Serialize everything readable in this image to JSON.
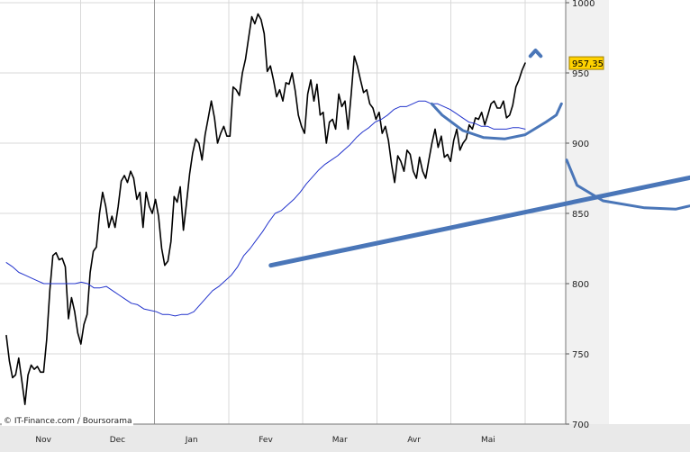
{
  "chart_data": {
    "type": "line",
    "title": "",
    "xlabel": "",
    "ylabel": "",
    "ylim": [
      700,
      1000
    ],
    "y_ticks": [
      700,
      750,
      800,
      850,
      900,
      950,
      1000
    ],
    "x_tick_labels": [
      "Nov",
      "Dec",
      "Jan",
      "Fev",
      "Mar",
      "Avr",
      "Mai"
    ],
    "grid": true,
    "last_value_label": "957,35",
    "source_label": "© IT-Finance.com / Boursorama",
    "series": [
      {
        "style": "price",
        "color": "#000000",
        "values": [
          763,
          745,
          733,
          735,
          747,
          731,
          714,
          735,
          742,
          739,
          741,
          737,
          737,
          760,
          795,
          820,
          822,
          817,
          818,
          812,
          775,
          790,
          780,
          765,
          757,
          771,
          778,
          808,
          823,
          826,
          850,
          865,
          855,
          840,
          848,
          840,
          855,
          873,
          877,
          872,
          880,
          875,
          860,
          865,
          840,
          865,
          855,
          850,
          860,
          848,
          825,
          813,
          816,
          830,
          862,
          858,
          869,
          838,
          857,
          878,
          893,
          903,
          900,
          888,
          906,
          918,
          930,
          918,
          900,
          907,
          912,
          905,
          905,
          940,
          938,
          934,
          950,
          960,
          975,
          990,
          985,
          992,
          988,
          978,
          951,
          955,
          945,
          933,
          938,
          930,
          943,
          942,
          950,
          937,
          920,
          912,
          907,
          935,
          945,
          930,
          942,
          920,
          922,
          900,
          915,
          917,
          910,
          935,
          926,
          930,
          910,
          935,
          962,
          955,
          945,
          936,
          938,
          928,
          925,
          917,
          922,
          907,
          912,
          902,
          885,
          872,
          891,
          887,
          880,
          895,
          892,
          880,
          875,
          890,
          880,
          875,
          888,
          900,
          910,
          897,
          905,
          890,
          892,
          887,
          902,
          910,
          895,
          900,
          903,
          913,
          910,
          918,
          917,
          922,
          913,
          920,
          928,
          930,
          925,
          925,
          930,
          918,
          920,
          927,
          940,
          945,
          952,
          957
        ]
      },
      {
        "style": "moving-average",
        "color": "#2233cc",
        "values": [
          815,
          812,
          808,
          806,
          804,
          802,
          800,
          800,
          800,
          800,
          800,
          800,
          801,
          800,
          797,
          797,
          798,
          795,
          792,
          789,
          786,
          785,
          782,
          781,
          780,
          778,
          778,
          777,
          778,
          778,
          780,
          785,
          790,
          795,
          798,
          802,
          806,
          812,
          820,
          825,
          831,
          837,
          844,
          850,
          852,
          856,
          860,
          865,
          871,
          876,
          881,
          885,
          888,
          891,
          895,
          899,
          904,
          908,
          911,
          915,
          917,
          920,
          924,
          926,
          926,
          928,
          930,
          930,
          928,
          928,
          926,
          924,
          921,
          918,
          915,
          914,
          912,
          912,
          910,
          910,
          910,
          911,
          911,
          910
        ]
      }
    ],
    "annotations": [
      {
        "kind": "trendline",
        "color": "#4a76b8",
        "points": [
          [
            51,
            813
          ],
          [
            170,
            905
          ]
        ]
      },
      {
        "kind": "freehand-cup",
        "color": "#4a76b8",
        "points": [
          [
            82,
            928
          ],
          [
            84,
            920
          ],
          [
            88,
            909
          ],
          [
            92,
            904
          ],
          [
            96,
            903
          ],
          [
            100,
            906
          ],
          [
            104,
            915
          ],
          [
            106,
            920
          ],
          [
            107,
            928
          ]
        ]
      },
      {
        "kind": "freehand-cup",
        "color": "#4a76b8",
        "points": [
          [
            108,
            888
          ],
          [
            110,
            870
          ],
          [
            115,
            859
          ],
          [
            123,
            854
          ],
          [
            129,
            853
          ],
          [
            136,
            859
          ],
          [
            144,
            869
          ],
          [
            146,
            882
          ],
          [
            147,
            895
          ],
          [
            149,
            924
          ],
          [
            149,
            934
          ]
        ]
      },
      {
        "kind": "freehand-cup",
        "color": "#4a76b8",
        "points": [
          [
            151,
            940
          ],
          [
            154,
            928
          ],
          [
            158,
            920
          ],
          [
            164,
            917
          ],
          [
            170,
            919
          ],
          [
            173,
            925
          ],
          [
            176,
            935
          ],
          [
            177,
            948
          ],
          [
            176,
            953
          ]
        ]
      },
      {
        "kind": "freehand-tick",
        "color": "#4a76b8",
        "points": [
          [
            101,
            962
          ],
          [
            102,
            966
          ],
          [
            103,
            962
          ]
        ]
      },
      {
        "kind": "freehand-tick",
        "color": "#4a76b8",
        "points": [
          [
            148,
            962
          ],
          [
            149,
            965
          ],
          [
            150,
            962
          ]
        ]
      }
    ]
  }
}
